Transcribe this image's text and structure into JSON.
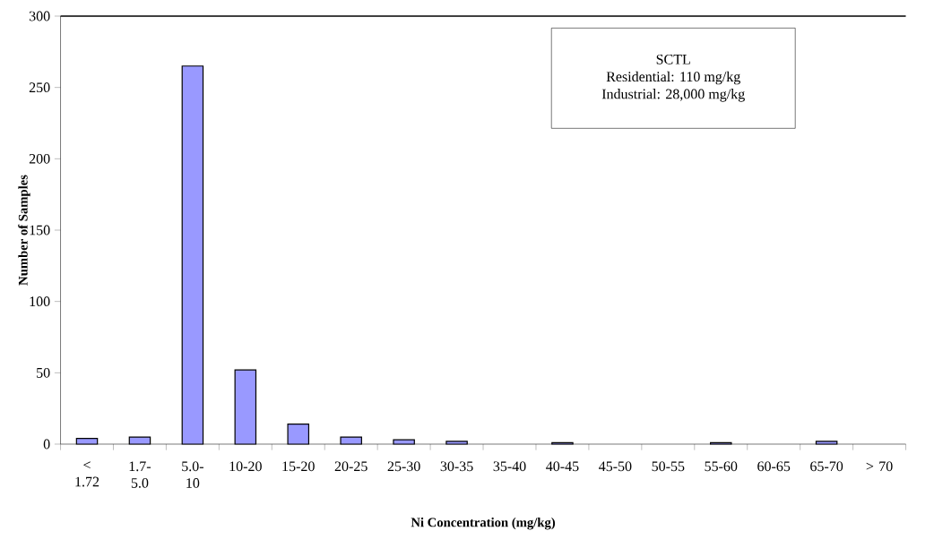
{
  "chart_data": {
    "type": "bar",
    "xlabel": "Ni Concentration (mg/kg)",
    "ylabel": "Number of Samples",
    "categories": [
      "< 1.72",
      "1.7- 5.0",
      "5.0- 10",
      "10-20",
      "15-20",
      "20-25",
      "25-30",
      "30-35",
      "35-40",
      "40-45",
      "45-50",
      "50-55",
      "55-60",
      "60-65",
      "65-70",
      "> 70"
    ],
    "values": [
      4,
      5,
      265,
      52,
      14,
      5,
      3,
      2,
      0,
      1,
      0,
      0,
      1,
      0,
      2,
      0
    ],
    "color": "#9999ff",
    "ylim": [
      0,
      300
    ],
    "yticks": [
      0,
      50,
      100,
      150,
      200,
      250,
      300
    ],
    "annotations": [
      "SCTL",
      "Residential: 110 mg/kg",
      "Industrial: 28,000 mg/kg"
    ]
  }
}
